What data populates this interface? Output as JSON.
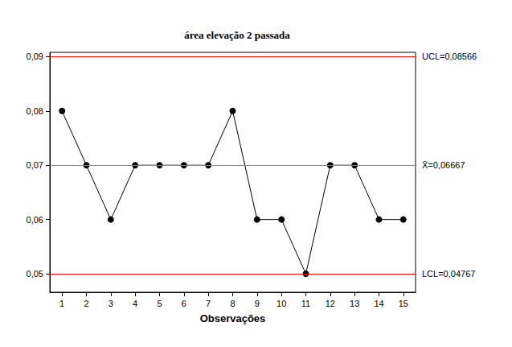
{
  "chart_data": {
    "type": "line",
    "title": "área elevação 2 passada",
    "x_label": "Observações",
    "categories": [
      "1",
      "2",
      "3",
      "4",
      "5",
      "6",
      "7",
      "8",
      "9",
      "10",
      "11",
      "12",
      "13",
      "14",
      "15"
    ],
    "values": [
      0.08,
      0.07,
      0.06,
      0.07,
      0.07,
      0.07,
      0.07,
      0.08,
      0.06,
      0.06,
      0.05,
      0.07,
      0.07,
      0.06,
      0.06
    ],
    "color": "#000000",
    "marker": "circle",
    "ylim": [
      0.0466,
      0.0908
    ],
    "yticks": [
      {
        "value": 0.05,
        "label": "0,05"
      },
      {
        "value": 0.06,
        "label": "0,06"
      },
      {
        "value": 0.07,
        "label": "0,07"
      },
      {
        "value": 0.08,
        "label": "0,08"
      },
      {
        "value": 0.09,
        "label": "0,09"
      }
    ],
    "grid": false,
    "annotations": [
      {
        "value": 0.08566,
        "label": "UCL=0,08566",
        "color": "#ff0000"
      },
      {
        "value": 0.06667,
        "label": "X̄=0,06667",
        "color": "#00dd00"
      },
      {
        "value": 0.04767,
        "label": "LCL=0,04767",
        "color": "#ff0000"
      }
    ]
  }
}
